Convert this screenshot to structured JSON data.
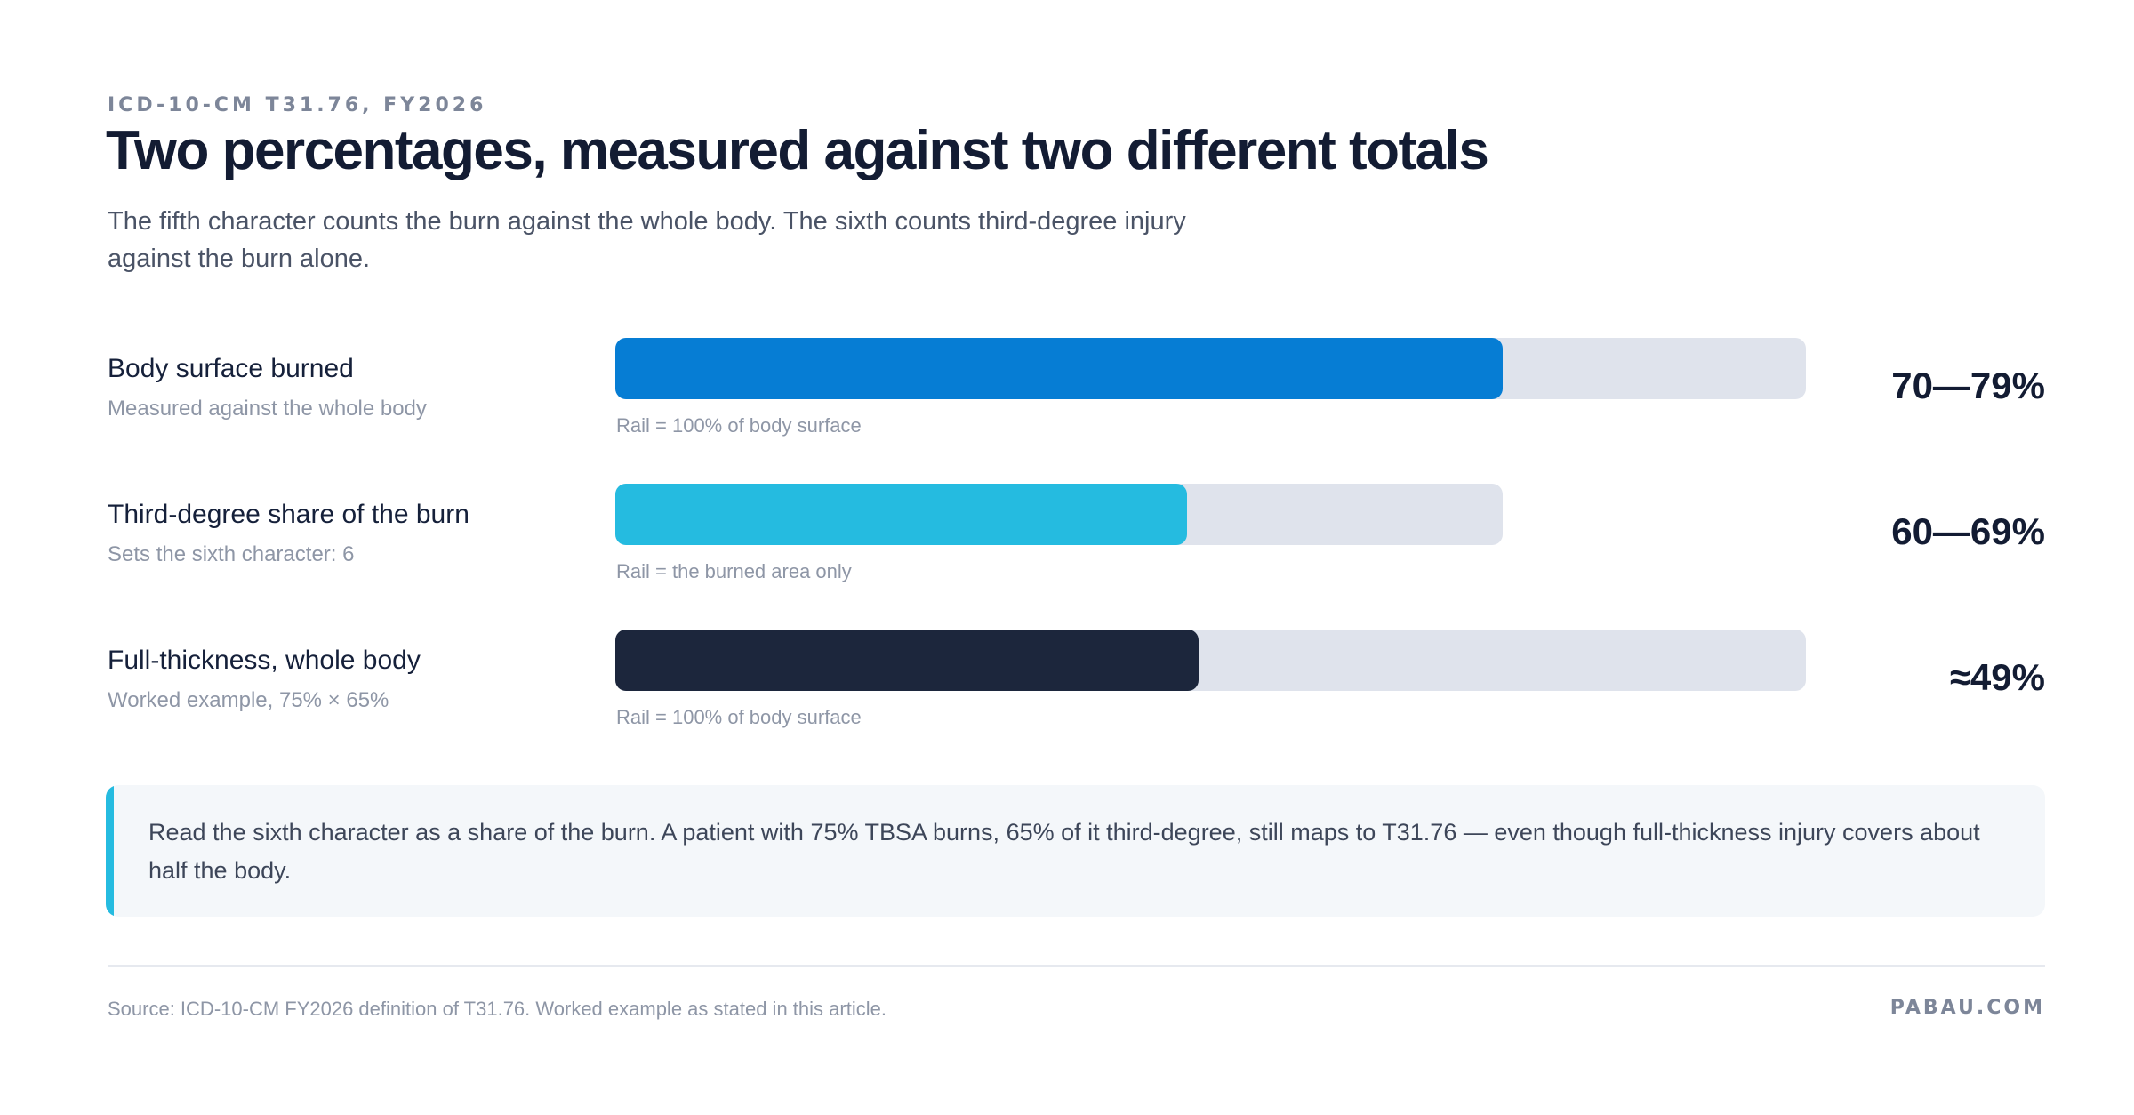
{
  "header": {
    "eyebrow": "ICD-10-CM T31.76, FY2026",
    "title": "Two percentages, measured against two different totals",
    "subtitle": "The fifth character counts the burn against the whole body. The sixth counts third-degree injury against the burn alone."
  },
  "chart_data": {
    "type": "bar",
    "orientation": "horizontal",
    "categories": [
      "Body surface burned",
      "Third-degree share of the burn",
      "Full-thickness, whole body"
    ],
    "rows": [
      {
        "label": "Body surface burned",
        "sublabel": "Measured against the whole body",
        "rail_caption": "Rail = 100% of body surface",
        "value_text": "70—79%",
        "fill_fraction_of_rail": 0.745,
        "rail_fraction": 1.0,
        "color": "#067dd4"
      },
      {
        "label": "Third-degree share of the burn",
        "sublabel": "Sets the sixth character: 6",
        "rail_caption": "Rail = the burned area only",
        "value_text": "60—69%",
        "fill_fraction_of_rail": 0.645,
        "rail_fraction": 0.745,
        "color": "#25bbe0"
      },
      {
        "label": "Full-thickness, whole body",
        "sublabel": "Worked example, 75% × 65%",
        "rail_caption": "Rail = 100% of body surface",
        "value_text": "≈49%",
        "fill_fraction_of_rail": 0.49,
        "rail_fraction": 1.0,
        "color": "#1c263c"
      }
    ],
    "rail_color": "#dfe3ec"
  },
  "callout": {
    "text": "Read the sixth character as a share of the burn. A patient with 75% TBSA burns, 65% of it third-degree, still maps to T31.76 — even though full-thickness injury covers about half the body.",
    "accent": "#25bbe0"
  },
  "footer": {
    "source": "Source: ICD-10-CM FY2026 definition of T31.76. Worked example as stated in this article.",
    "brand": "PABAU.COM"
  }
}
